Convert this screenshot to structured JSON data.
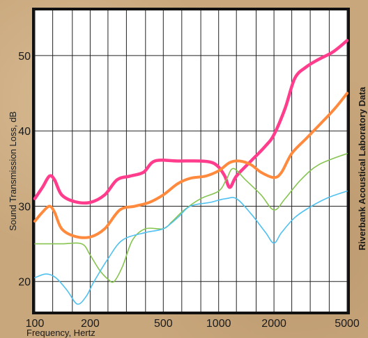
{
  "chart_data": {
    "type": "line",
    "title": "",
    "xlabel": "Frequency, Hertz",
    "ylabel": "Sound Transmission Loss, dB",
    "source_label": "Riverbank Acoustical Laboratory Data",
    "x_scale": "log",
    "xlim": [
      100,
      5000
    ],
    "ylim": [
      16,
      56
    ],
    "x_ticks": [
      100,
      200,
      500,
      1000,
      2000,
      5000
    ],
    "x_tick_labels": [
      "100",
      "200",
      "500",
      "1000",
      "2000",
      "5000"
    ],
    "y_ticks": [
      20,
      30,
      40,
      50
    ],
    "y_tick_labels": [
      "20",
      "30",
      "40",
      "50"
    ],
    "grid": true,
    "x_gridlines": [
      100,
      125,
      160,
      200,
      250,
      315,
      400,
      500,
      630,
      800,
      1000,
      1250,
      1600,
      2000,
      2500,
      3150,
      4000,
      5000
    ],
    "series": [
      {
        "color": "#ff3d8c",
        "points": [
          [
            100,
            31
          ],
          [
            110,
            32.5
          ],
          [
            120,
            34
          ],
          [
            128,
            33.5
          ],
          [
            140,
            31.5
          ],
          [
            165,
            30.6
          ],
          [
            200,
            30.5
          ],
          [
            240,
            31.5
          ],
          [
            280,
            33.5
          ],
          [
            330,
            34
          ],
          [
            390,
            34.5
          ],
          [
            450,
            36
          ],
          [
            600,
            36
          ],
          [
            800,
            36
          ],
          [
            920,
            35.8
          ],
          [
            1000,
            35.2
          ],
          [
            1080,
            34
          ],
          [
            1150,
            32.5
          ],
          [
            1250,
            34
          ],
          [
            1500,
            36
          ],
          [
            1800,
            38
          ],
          [
            2000,
            39.5
          ],
          [
            2300,
            43
          ],
          [
            2600,
            47
          ],
          [
            3000,
            48.5
          ],
          [
            3500,
            49.5
          ],
          [
            4200,
            50.5
          ],
          [
            5000,
            52
          ]
        ]
      },
      {
        "color": "#ff8a3d",
        "points": [
          [
            100,
            28
          ],
          [
            110,
            29.2
          ],
          [
            120,
            30
          ],
          [
            128,
            29.2
          ],
          [
            140,
            27
          ],
          [
            165,
            26
          ],
          [
            200,
            25.9
          ],
          [
            240,
            27
          ],
          [
            290,
            29.5
          ],
          [
            350,
            30
          ],
          [
            420,
            30.5
          ],
          [
            500,
            31.5
          ],
          [
            600,
            33
          ],
          [
            700,
            33.7
          ],
          [
            850,
            34
          ],
          [
            1000,
            34.7
          ],
          [
            1150,
            35.8
          ],
          [
            1300,
            36
          ],
          [
            1500,
            35.5
          ],
          [
            1700,
            34.5
          ],
          [
            2000,
            33.8
          ],
          [
            2200,
            34.5
          ],
          [
            2500,
            37
          ],
          [
            3000,
            39
          ],
          [
            3600,
            41
          ],
          [
            4300,
            43
          ],
          [
            5000,
            45
          ]
        ]
      },
      {
        "color": "#86c450",
        "points": [
          [
            100,
            25
          ],
          [
            140,
            25
          ],
          [
            180,
            25
          ],
          [
            200,
            23.5
          ],
          [
            225,
            21.5
          ],
          [
            250,
            20.3
          ],
          [
            270,
            20
          ],
          [
            300,
            22
          ],
          [
            340,
            25.5
          ],
          [
            400,
            27
          ],
          [
            500,
            27
          ],
          [
            560,
            28
          ],
          [
            650,
            29.5
          ],
          [
            800,
            31
          ],
          [
            1000,
            32
          ],
          [
            1100,
            33.5
          ],
          [
            1200,
            35
          ],
          [
            1400,
            33.5
          ],
          [
            1700,
            31.5
          ],
          [
            2000,
            29.5
          ],
          [
            2300,
            31
          ],
          [
            2800,
            33.5
          ],
          [
            3500,
            35.5
          ],
          [
            5000,
            37
          ]
        ]
      },
      {
        "color": "#50c0f0",
        "points": [
          [
            100,
            20.5
          ],
          [
            115,
            21
          ],
          [
            130,
            20.5
          ],
          [
            150,
            18.8
          ],
          [
            170,
            17
          ],
          [
            190,
            18
          ],
          [
            210,
            20
          ],
          [
            250,
            23
          ],
          [
            300,
            25.5
          ],
          [
            400,
            26.5
          ],
          [
            500,
            27
          ],
          [
            600,
            28.5
          ],
          [
            700,
            30
          ],
          [
            900,
            30.5
          ],
          [
            1000,
            30.8
          ],
          [
            1100,
            31
          ],
          [
            1250,
            31
          ],
          [
            1500,
            29
          ],
          [
            1800,
            26.5
          ],
          [
            2000,
            25.1
          ],
          [
            2200,
            26.5
          ],
          [
            2600,
            28.5
          ],
          [
            3200,
            30
          ],
          [
            4000,
            31.2
          ],
          [
            5000,
            32
          ]
        ]
      }
    ]
  }
}
